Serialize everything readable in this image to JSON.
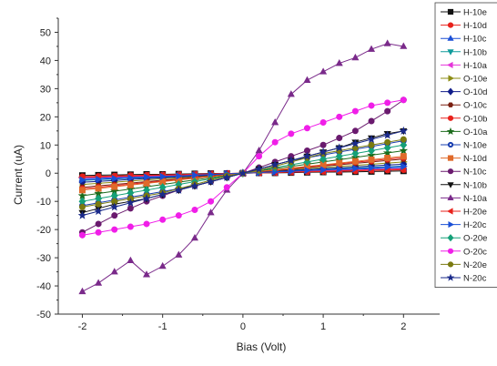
{
  "chart_data": {
    "type": "line",
    "xlabel": "Bias (Volt)",
    "ylabel": "Current (uA)",
    "xlim": [
      -2.3,
      2.45
    ],
    "ylim": [
      -50,
      55
    ],
    "xticks": [
      -2,
      -1,
      0,
      1,
      2
    ],
    "yticks": [
      -50,
      -40,
      -30,
      -20,
      -10,
      0,
      10,
      20,
      30,
      40,
      50
    ],
    "legend_position": "top-right",
    "x": [
      -2.0,
      -1.8,
      -1.6,
      -1.4,
      -1.2,
      -1.0,
      -0.8,
      -0.6,
      -0.4,
      -0.2,
      0.0,
      0.2,
      0.4,
      0.6,
      0.8,
      1.0,
      1.2,
      1.4,
      1.6,
      1.8,
      2.0
    ],
    "series": [
      {
        "name": "H-10e",
        "color": "#111111",
        "marker": "square",
        "values": [
          -0.8,
          -0.7,
          -0.6,
          -0.5,
          -0.4,
          -0.4,
          -0.3,
          -0.2,
          -0.1,
          -0.1,
          0.0,
          0.1,
          0.1,
          0.2,
          0.3,
          0.4,
          0.4,
          0.5,
          0.6,
          0.7,
          0.8
        ]
      },
      {
        "name": "H-10d",
        "color": "#e8211b",
        "marker": "circle",
        "values": [
          -1.2,
          -1.1,
          -1.0,
          -0.8,
          -0.7,
          -0.6,
          -0.5,
          -0.4,
          -0.2,
          -0.1,
          0.0,
          0.1,
          0.2,
          0.4,
          0.5,
          0.6,
          0.7,
          0.8,
          1.0,
          1.1,
          1.2
        ]
      },
      {
        "name": "H-10c",
        "color": "#1a4fd6",
        "marker": "triangle-up",
        "values": [
          -2.0,
          -1.8,
          -1.6,
          -1.4,
          -1.2,
          -1.0,
          -0.8,
          -0.6,
          -0.4,
          -0.2,
          0.0,
          0.2,
          0.4,
          0.6,
          0.8,
          1.0,
          1.2,
          1.4,
          1.6,
          1.8,
          2.0
        ]
      },
      {
        "name": "H-10b",
        "color": "#0f9b9b",
        "marker": "triangle-down",
        "values": [
          -2.6,
          -2.3,
          -2.1,
          -1.8,
          -1.6,
          -1.3,
          -1.0,
          -0.8,
          -0.5,
          -0.3,
          0.0,
          0.3,
          0.5,
          0.8,
          1.0,
          1.3,
          1.6,
          1.8,
          2.1,
          2.3,
          2.6
        ]
      },
      {
        "name": "H-10a",
        "color": "#e535d9",
        "marker": "triangle-left",
        "values": [
          -1.6,
          -1.4,
          -1.3,
          -1.1,
          -1.0,
          -0.8,
          -0.6,
          -0.5,
          -0.3,
          -0.2,
          0.0,
          0.2,
          0.3,
          0.5,
          0.6,
          0.8,
          1.0,
          1.1,
          1.3,
          1.4,
          1.6
        ]
      },
      {
        "name": "O-10e",
        "color": "#8c8c14",
        "marker": "triangle-right",
        "values": [
          -4.0,
          -3.6,
          -3.2,
          -2.8,
          -2.4,
          -2.0,
          -1.6,
          -1.2,
          -0.8,
          -0.4,
          0.0,
          0.4,
          0.8,
          1.2,
          1.6,
          2.0,
          2.4,
          2.8,
          3.2,
          3.6,
          4.0
        ]
      },
      {
        "name": "O-10d",
        "color": "#101d8a",
        "marker": "diamond",
        "values": [
          -3.2,
          -2.9,
          -2.6,
          -2.2,
          -1.9,
          -1.6,
          -1.3,
          -1.0,
          -0.6,
          -0.3,
          0.0,
          0.3,
          0.6,
          1.0,
          1.3,
          1.6,
          1.9,
          2.2,
          2.6,
          2.9,
          3.2
        ]
      },
      {
        "name": "O-10c",
        "color": "#7a1f10",
        "marker": "hexagon",
        "values": [
          -5.0,
          -4.5,
          -4.0,
          -3.5,
          -3.0,
          -2.5,
          -2.0,
          -1.5,
          -1.0,
          -0.5,
          0.0,
          0.5,
          1.0,
          1.5,
          2.0,
          2.5,
          3.0,
          3.5,
          4.0,
          4.5,
          5.0
        ]
      },
      {
        "name": "O-10b",
        "color": "#e8211b",
        "marker": "circle",
        "values": [
          -5.5,
          -5.0,
          -4.4,
          -3.9,
          -3.3,
          -2.8,
          -2.2,
          -1.7,
          -1.1,
          -0.6,
          0.0,
          0.6,
          1.1,
          1.7,
          2.2,
          2.8,
          3.3,
          3.9,
          4.4,
          5.0,
          5.5
        ]
      },
      {
        "name": "O-10a",
        "color": "#1b6b1b",
        "marker": "star",
        "values": [
          -8.0,
          -7.2,
          -6.4,
          -5.6,
          -4.8,
          -4.0,
          -3.2,
          -2.4,
          -1.6,
          -0.8,
          0.0,
          0.8,
          1.6,
          2.4,
          3.2,
          4.0,
          4.8,
          5.6,
          6.4,
          7.2,
          8.0
        ]
      },
      {
        "name": "N-10e",
        "color": "#1a3fb0",
        "marker": "circle-dot",
        "values": [
          -11.5,
          -10.5,
          -9.5,
          -8.5,
          -7.5,
          -6.5,
          -5.5,
          -4.5,
          -3.0,
          -1.5,
          0.0,
          1.5,
          3.0,
          4.5,
          5.5,
          6.5,
          7.5,
          8.5,
          9.5,
          10.5,
          11.5
        ]
      },
      {
        "name": "N-10d",
        "color": "#e06a2a",
        "marker": "square",
        "values": [
          -6.0,
          -5.4,
          -4.8,
          -4.2,
          -3.6,
          -3.0,
          -2.4,
          -1.8,
          -1.2,
          -0.6,
          0.0,
          0.6,
          1.2,
          1.8,
          2.4,
          3.0,
          3.6,
          4.2,
          4.8,
          5.4,
          6.0
        ]
      },
      {
        "name": "N-10c",
        "color": "#6a1a6e",
        "marker": "circle",
        "values": [
          -21.0,
          -18.0,
          -15.0,
          -12.5,
          -10.0,
          -8.0,
          -6.0,
          -4.5,
          -3.0,
          -1.5,
          0.0,
          2.0,
          4.0,
          6.0,
          8.0,
          10.0,
          12.5,
          15.0,
          18.5,
          22.0,
          26.0
        ]
      },
      {
        "name": "N-10b",
        "color": "#111111",
        "marker": "triangle-down",
        "values": [
          -14.0,
          -12.5,
          -11.0,
          -10.0,
          -9.0,
          -7.5,
          -6.0,
          -4.5,
          -3.0,
          -1.5,
          0.0,
          1.5,
          3.0,
          4.5,
          6.0,
          7.5,
          9.0,
          11.0,
          12.5,
          14.0,
          15.0
        ]
      },
      {
        "name": "N-10a",
        "color": "#7a2a8a",
        "marker": "triangle-up",
        "values": [
          -42.0,
          -39.0,
          -35.0,
          -31.0,
          -36.0,
          -33.0,
          -29.0,
          -23.0,
          -14.0,
          -6.0,
          0.0,
          8.0,
          18.0,
          28.0,
          33.0,
          36.0,
          39.0,
          41.0,
          44.0,
          46.0,
          45.0
        ]
      },
      {
        "name": "H-20e",
        "color": "#e8211b",
        "marker": "triangle-left",
        "values": [
          -1.4,
          -1.3,
          -1.1,
          -1.0,
          -0.8,
          -0.7,
          -0.6,
          -0.4,
          -0.3,
          -0.1,
          0.0,
          0.1,
          0.3,
          0.4,
          0.6,
          0.7,
          0.8,
          1.0,
          1.1,
          1.3,
          1.4
        ]
      },
      {
        "name": "H-20c",
        "color": "#1a4fd6",
        "marker": "triangle-right",
        "values": [
          -2.4,
          -2.2,
          -1.9,
          -1.7,
          -1.4,
          -1.2,
          -1.0,
          -0.7,
          -0.5,
          -0.2,
          0.0,
          0.2,
          0.5,
          0.7,
          1.0,
          1.2,
          1.4,
          1.7,
          1.9,
          2.2,
          2.4
        ]
      },
      {
        "name": "O-20e",
        "color": "#14a078",
        "marker": "diamond",
        "values": [
          -10.0,
          -9.0,
          -8.0,
          -7.0,
          -6.0,
          -5.0,
          -4.0,
          -3.0,
          -2.0,
          -1.0,
          0.0,
          1.0,
          2.0,
          3.0,
          4.0,
          5.0,
          6.0,
          7.0,
          8.0,
          9.0,
          10.0
        ]
      },
      {
        "name": "O-20c",
        "color": "#f01ee8",
        "marker": "circle",
        "values": [
          -22.0,
          -21.0,
          -20.0,
          -19.0,
          -18.0,
          -16.5,
          -15.0,
          -13.0,
          -10.0,
          -5.0,
          0.0,
          6.0,
          11.0,
          14.0,
          16.0,
          18.0,
          20.0,
          22.0,
          24.0,
          25.0,
          26.0
        ]
      },
      {
        "name": "N-20e",
        "color": "#7a7a10",
        "marker": "circle",
        "values": [
          -12.0,
          -11.0,
          -10.0,
          -9.0,
          -8.0,
          -7.0,
          -5.5,
          -4.0,
          -2.5,
          -1.0,
          0.0,
          1.0,
          2.5,
          4.0,
          5.5,
          7.0,
          8.0,
          9.0,
          10.0,
          11.0,
          12.0
        ]
      },
      {
        "name": "N-20c",
        "color": "#1a2a8a",
        "marker": "star",
        "values": [
          -15.0,
          -13.5,
          -12.0,
          -10.5,
          -9.0,
          -7.5,
          -6.0,
          -4.5,
          -3.0,
          -1.5,
          0.0,
          1.5,
          3.0,
          4.5,
          6.0,
          7.5,
          9.0,
          10.5,
          12.0,
          13.5,
          15.0
        ]
      }
    ]
  }
}
